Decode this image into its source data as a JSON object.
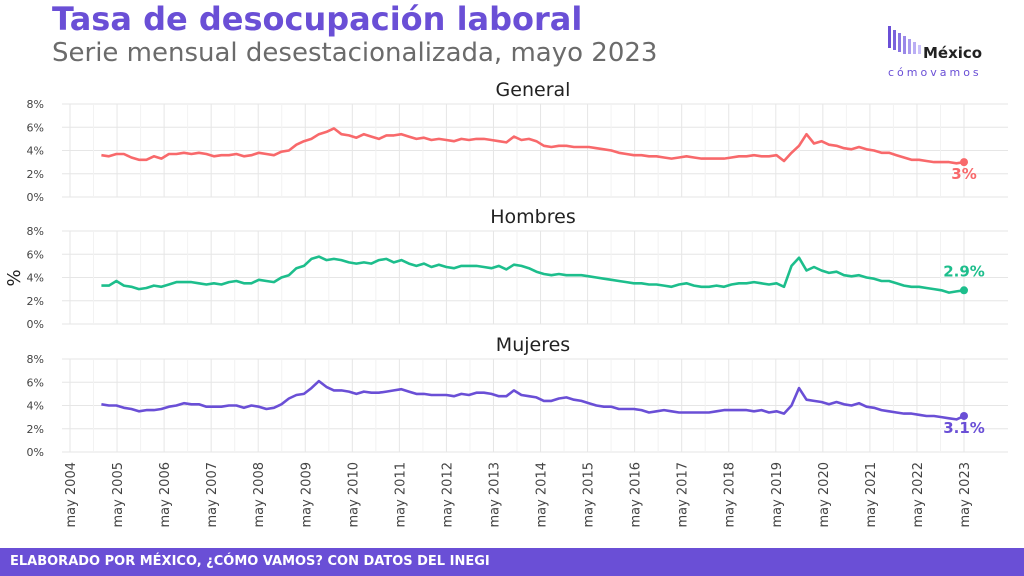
{
  "title": "Tasa de desocupación laboral",
  "subtitle": "Serie mensual desestacionalizada, mayo 2023",
  "logo": {
    "word": "México",
    "sub": "cómovamos"
  },
  "footer": "ELABORADO POR MÉXICO, ¿CÓMO VAMOS? CON DATOS DEL INEGI",
  "colors": {
    "General": "#f8696b",
    "Hombres": "#1dbe8c",
    "Mujeres": "#6a4fd6",
    "accent": "#6a4fd6"
  },
  "chart_data": [
    {
      "type": "line",
      "panel_title": "General",
      "ylabel": "%",
      "y_ticks": [
        "0%",
        "2%",
        "4%",
        "6%",
        "8%"
      ],
      "ylim": [
        0,
        8
      ],
      "x_ticks": [
        "may 2004",
        "may 2005",
        "may 2006",
        "may 2007",
        "may 2008",
        "may 2009",
        "may 2010",
        "may 2011",
        "may 2012",
        "may 2013",
        "may 2014",
        "may 2015",
        "may 2016",
        "may 2017",
        "may 2018",
        "may 2019",
        "may 2020",
        "may 2021",
        "may 2022",
        "may 2023"
      ],
      "x_start": "2005-01",
      "x_end": "2023-05",
      "series": [
        {
          "values": [
            3.6,
            3.5,
            3.7,
            3.7,
            3.4,
            3.2,
            3.2,
            3.5,
            3.3,
            3.7,
            3.7,
            3.8,
            3.7,
            3.8,
            3.7,
            3.5,
            3.6,
            3.6,
            3.7,
            3.5,
            3.6,
            3.8,
            3.7,
            3.6,
            3.9,
            4.0,
            4.5,
            4.8,
            5.0,
            5.4,
            5.6,
            5.9,
            5.4,
            5.3,
            5.1,
            5.4,
            5.2,
            5.0,
            5.3,
            5.3,
            5.4,
            5.2,
            5.0,
            5.1,
            4.9,
            5.0,
            4.9,
            4.8,
            5.0,
            4.9,
            5.0,
            5.0,
            4.9,
            4.8,
            4.7,
            5.2,
            4.9,
            5.0,
            4.8,
            4.4,
            4.3,
            4.4,
            4.4,
            4.3,
            4.3,
            4.3,
            4.2,
            4.1,
            4.0,
            3.8,
            3.7,
            3.6,
            3.6,
            3.5,
            3.5,
            3.4,
            3.3,
            3.4,
            3.5,
            3.4,
            3.3,
            3.3,
            3.3,
            3.3,
            3.4,
            3.5,
            3.5,
            3.6,
            3.5,
            3.5,
            3.6,
            3.1,
            3.8,
            4.4,
            5.4,
            4.6,
            4.8,
            4.5,
            4.4,
            4.2,
            4.1,
            4.3,
            4.1,
            4.0,
            3.8,
            3.8,
            3.6,
            3.4,
            3.2,
            3.2,
            3.1,
            3.0,
            3.0,
            3.0,
            2.9,
            3.0
          ]
        }
      ],
      "end_label": "3%"
    },
    {
      "type": "line",
      "panel_title": "Hombres",
      "ylabel": "%",
      "y_ticks": [
        "0%",
        "2%",
        "4%",
        "6%",
        "8%"
      ],
      "ylim": [
        0,
        8
      ],
      "x_ticks": [
        "may 2004",
        "may 2005",
        "may 2006",
        "may 2007",
        "may 2008",
        "may 2009",
        "may 2010",
        "may 2011",
        "may 2012",
        "may 2013",
        "may 2014",
        "may 2015",
        "may 2016",
        "may 2017",
        "may 2018",
        "may 2019",
        "may 2020",
        "may 2021",
        "may 2022",
        "may 2023"
      ],
      "x_start": "2005-01",
      "x_end": "2023-05",
      "series": [
        {
          "values": [
            3.3,
            3.3,
            3.7,
            3.3,
            3.2,
            3.0,
            3.1,
            3.3,
            3.2,
            3.4,
            3.6,
            3.6,
            3.6,
            3.5,
            3.4,
            3.5,
            3.4,
            3.6,
            3.7,
            3.5,
            3.5,
            3.8,
            3.7,
            3.6,
            4.0,
            4.2,
            4.8,
            5.0,
            5.6,
            5.8,
            5.5,
            5.6,
            5.5,
            5.3,
            5.2,
            5.3,
            5.2,
            5.5,
            5.6,
            5.3,
            5.5,
            5.2,
            5.0,
            5.2,
            4.9,
            5.1,
            4.9,
            4.8,
            5.0,
            5.0,
            5.0,
            4.9,
            4.8,
            5.0,
            4.7,
            5.1,
            5.0,
            4.8,
            4.5,
            4.3,
            4.2,
            4.3,
            4.2,
            4.2,
            4.2,
            4.1,
            4.0,
            3.9,
            3.8,
            3.7,
            3.6,
            3.5,
            3.5,
            3.4,
            3.4,
            3.3,
            3.2,
            3.4,
            3.5,
            3.3,
            3.2,
            3.2,
            3.3,
            3.2,
            3.4,
            3.5,
            3.5,
            3.6,
            3.5,
            3.4,
            3.5,
            3.2,
            5.0,
            5.7,
            4.6,
            4.9,
            4.6,
            4.4,
            4.5,
            4.2,
            4.1,
            4.2,
            4.0,
            3.9,
            3.7,
            3.7,
            3.5,
            3.3,
            3.2,
            3.2,
            3.1,
            3.0,
            2.9,
            2.7,
            2.8,
            2.9
          ]
        }
      ],
      "end_label": "2.9%"
    },
    {
      "type": "line",
      "panel_title": "Mujeres",
      "ylabel": "%",
      "y_ticks": [
        "0%",
        "2%",
        "4%",
        "6%",
        "8%"
      ],
      "ylim": [
        0,
        8
      ],
      "x_ticks": [
        "may 2004",
        "may 2005",
        "may 2006",
        "may 2007",
        "may 2008",
        "may 2009",
        "may 2010",
        "may 2011",
        "may 2012",
        "may 2013",
        "may 2014",
        "may 2015",
        "may 2016",
        "may 2017",
        "may 2018",
        "may 2019",
        "may 2020",
        "may 2021",
        "may 2022",
        "may 2023"
      ],
      "x_start": "2005-01",
      "x_end": "2023-05",
      "series": [
        {
          "values": [
            4.1,
            4.0,
            4.0,
            3.8,
            3.7,
            3.5,
            3.6,
            3.6,
            3.7,
            3.9,
            4.0,
            4.2,
            4.1,
            4.1,
            3.9,
            3.9,
            3.9,
            4.0,
            4.0,
            3.8,
            4.0,
            3.9,
            3.7,
            3.8,
            4.1,
            4.6,
            4.9,
            5.0,
            5.5,
            6.1,
            5.6,
            5.3,
            5.3,
            5.2,
            5.0,
            5.2,
            5.1,
            5.1,
            5.2,
            5.3,
            5.4,
            5.2,
            5.0,
            5.0,
            4.9,
            4.9,
            4.9,
            4.8,
            5.0,
            4.9,
            5.1,
            5.1,
            5.0,
            4.8,
            4.8,
            5.3,
            4.9,
            4.8,
            4.7,
            4.4,
            4.4,
            4.6,
            4.7,
            4.5,
            4.4,
            4.2,
            4.0,
            3.9,
            3.9,
            3.7,
            3.7,
            3.7,
            3.6,
            3.4,
            3.5,
            3.6,
            3.5,
            3.4,
            3.4,
            3.4,
            3.4,
            3.4,
            3.5,
            3.6,
            3.6,
            3.6,
            3.6,
            3.5,
            3.6,
            3.4,
            3.5,
            3.3,
            4.0,
            5.5,
            4.5,
            4.4,
            4.3,
            4.1,
            4.3,
            4.1,
            4.0,
            4.2,
            3.9,
            3.8,
            3.6,
            3.5,
            3.4,
            3.3,
            3.3,
            3.2,
            3.1,
            3.1,
            3.0,
            2.9,
            2.8,
            3.1
          ]
        }
      ],
      "end_label": "3.1%"
    }
  ]
}
